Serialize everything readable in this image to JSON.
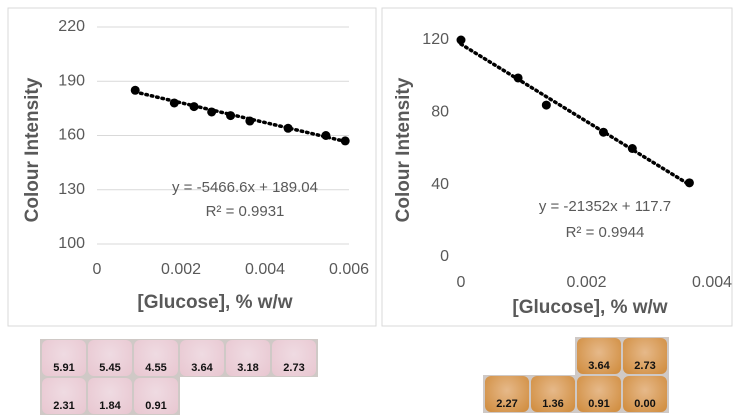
{
  "chart_data": [
    {
      "type": "scatter",
      "xlabel": "[Glucose], % w/w",
      "ylabel": "Colour  Intensity",
      "x": [
        0.00091,
        0.00184,
        0.00231,
        0.00273,
        0.00318,
        0.00364,
        0.00455,
        0.00545,
        0.00591
      ],
      "y": [
        185,
        178,
        176,
        173,
        171,
        168,
        164,
        160,
        157
      ],
      "color": "#000000",
      "xlim": [
        0,
        0.006
      ],
      "xticks": [
        0,
        0.002,
        0.004,
        0.006
      ],
      "ylim": [
        100,
        220
      ],
      "yticks": [
        100,
        130,
        160,
        190,
        220
      ],
      "grid": true,
      "trendline": {
        "label": "y = -5466.6x + 189.04",
        "slope": -5466.6,
        "intercept": 189.04,
        "r2_label": "R² = 0.9931"
      }
    },
    {
      "type": "scatter",
      "xlabel": "[Glucose], % w/w",
      "ylabel": "Colour Intensity",
      "x": [
        0,
        0.00091,
        0.00136,
        0.00227,
        0.00273,
        0.00364
      ],
      "y": [
        120,
        99,
        84,
        69,
        60,
        41
      ],
      "color": "#000000",
      "xlim": [
        0,
        0.004
      ],
      "xticks": [
        0,
        0.002,
        0.004
      ],
      "ylim": [
        0,
        120
      ],
      "yticks": [
        0,
        40,
        80,
        120
      ],
      "grid": false,
      "trendline": {
        "label": "y = -21352x + 117.7",
        "slope": -21352,
        "intercept": 117.7,
        "r2_label": "R² = 0.9944"
      }
    }
  ],
  "wells": {
    "left": [
      [
        "5.91",
        "5.45",
        "4.55",
        "3.64",
        "3.18",
        "2.73"
      ],
      [
        "2.31",
        "1.84",
        "0.91"
      ]
    ],
    "right": [
      [
        "3.64",
        "2.73"
      ],
      [
        "2.27",
        "1.36",
        "0.91",
        "0.00"
      ]
    ]
  }
}
